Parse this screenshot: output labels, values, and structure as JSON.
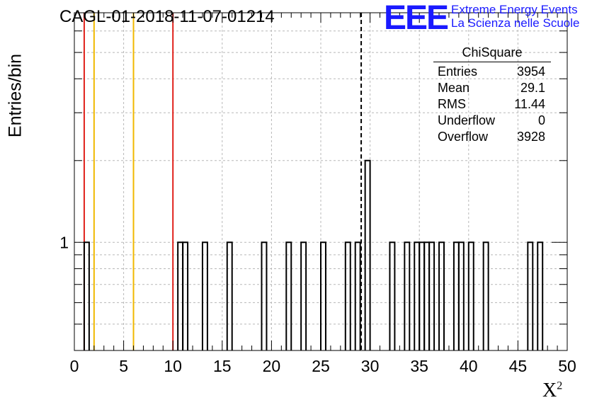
{
  "chart_data": {
    "type": "bar",
    "title": "CAGL-01-2018-11-07-01214",
    "xlabel": "X",
    "xlabel_sup": "2",
    "ylabel": "Entries/bin",
    "xlim": [
      0,
      50
    ],
    "ylim": [
      0.4,
      7
    ],
    "yscale": "log",
    "grid": true,
    "bin_width": 0.5,
    "x_ticks": [
      0,
      5,
      10,
      15,
      20,
      25,
      30,
      35,
      40,
      45,
      50
    ],
    "y_ticks": [
      1
    ],
    "bins": [
      {
        "x": 1.0,
        "y": 1
      },
      {
        "x": 10.5,
        "y": 1
      },
      {
        "x": 11.0,
        "y": 1
      },
      {
        "x": 13.0,
        "y": 1
      },
      {
        "x": 15.5,
        "y": 1
      },
      {
        "x": 19.0,
        "y": 1
      },
      {
        "x": 21.5,
        "y": 1
      },
      {
        "x": 23.0,
        "y": 1
      },
      {
        "x": 25.0,
        "y": 1
      },
      {
        "x": 27.5,
        "y": 1
      },
      {
        "x": 28.5,
        "y": 1
      },
      {
        "x": 29.5,
        "y": 2
      },
      {
        "x": 32.0,
        "y": 1
      },
      {
        "x": 33.5,
        "y": 1
      },
      {
        "x": 34.5,
        "y": 1
      },
      {
        "x": 35.0,
        "y": 1
      },
      {
        "x": 35.5,
        "y": 1
      },
      {
        "x": 36.0,
        "y": 1
      },
      {
        "x": 37.0,
        "y": 1
      },
      {
        "x": 38.5,
        "y": 1
      },
      {
        "x": 39.0,
        "y": 1
      },
      {
        "x": 40.0,
        "y": 1
      },
      {
        "x": 41.5,
        "y": 1
      },
      {
        "x": 46.0,
        "y": 1
      },
      {
        "x": 47.0,
        "y": 1
      }
    ],
    "vlines": [
      {
        "x": 1,
        "color": "#e0201a",
        "style": "solid"
      },
      {
        "x": 2,
        "color": "#f0b800",
        "style": "solid"
      },
      {
        "x": 6,
        "color": "#f0b800",
        "style": "solid"
      },
      {
        "x": 10,
        "color": "#e0201a",
        "style": "solid"
      },
      {
        "x": 29.1,
        "color": "#000000",
        "style": "dashed"
      }
    ],
    "stats": {
      "title": "ChiSquare",
      "rows": [
        {
          "label": "Entries",
          "value": "3954"
        },
        {
          "label": "Mean",
          "value": "29.1"
        },
        {
          "label": "RMS",
          "value": "11.44"
        },
        {
          "label": "Underflow",
          "value": "0"
        },
        {
          "label": "Overflow",
          "value": "3928"
        }
      ]
    }
  },
  "logo": {
    "mark": "EEE",
    "line1": "Extreme Energy Events",
    "line2": "La Scienza nelle Scuole"
  }
}
